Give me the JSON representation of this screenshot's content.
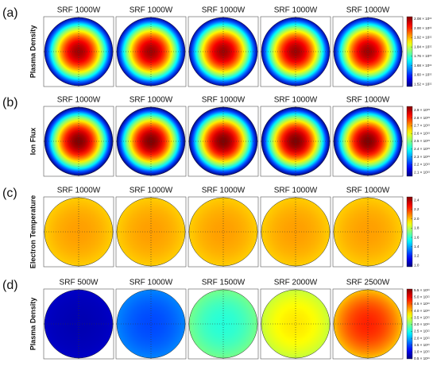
{
  "chart_data": [
    {
      "type": "heatmap",
      "label": "(a)",
      "ylabel": "Plasma Density",
      "panels": [
        {
          "title": "SRF 1000W",
          "center": 208000000000.0,
          "edge": 152000000000.0
        },
        {
          "title": "SRF 1000W",
          "center": 208000000000.0,
          "edge": 152000000000.0
        },
        {
          "title": "SRF 1000W",
          "center": 208000000000.0,
          "edge": 152000000000.0
        },
        {
          "title": "SRF 1000W",
          "center": 208000000000.0,
          "edge": 152000000000.0
        },
        {
          "title": "SRF 1000W",
          "center": 208000000000.0,
          "edge": 152000000000.0
        }
      ],
      "clim": [
        150000000000.0,
        210000000000.0
      ],
      "cticks": [
        {
          "value": 208000000000.0,
          "label": "2.08 × 10¹¹"
        },
        {
          "value": 200000000000.0,
          "label": "2.00 × 10¹¹"
        },
        {
          "value": 192000000000.0,
          "label": "1.92 × 10¹¹"
        },
        {
          "value": 184000000000.0,
          "label": "1.84 × 10¹¹"
        },
        {
          "value": 176000000000.0,
          "label": "1.76 × 10¹¹"
        },
        {
          "value": 168000000000.0,
          "label": "1.68 × 10¹¹"
        },
        {
          "value": 160000000000.0,
          "label": "1.60 × 10¹¹"
        },
        {
          "value": 152000000000.0,
          "label": "1.52 × 10¹¹"
        }
      ]
    },
    {
      "type": "heatmap",
      "label": "(b)",
      "ylabel": "Ion Flux",
      "panels": [
        {
          "title": "SRF 1000W",
          "center": 2950000000000000.0,
          "edge": 2050000000000000.0
        },
        {
          "title": "SRF 1000W",
          "center": 2950000000000000.0,
          "edge": 2050000000000000.0
        },
        {
          "title": "SRF 1000W",
          "center": 2950000000000000.0,
          "edge": 2050000000000000.0
        },
        {
          "title": "SRF 1000W",
          "center": 2950000000000000.0,
          "edge": 2050000000000000.0
        },
        {
          "title": "SRF 1000W",
          "center": 2950000000000000.0,
          "edge": 2050000000000000.0
        }
      ],
      "clim": [
        2050000000000000.0,
        2950000000000000.0
      ],
      "cticks": [
        {
          "value": 2900000000000000.0,
          "label": "2.9 × 10¹⁵"
        },
        {
          "value": 2800000000000000.0,
          "label": "2.8 × 10¹⁵"
        },
        {
          "value": 2700000000000000.0,
          "label": "2.7 × 10¹⁵"
        },
        {
          "value": 2600000000000000.0,
          "label": "2.6 × 10¹⁵"
        },
        {
          "value": 2500000000000000.0,
          "label": "2.5 × 10¹⁵"
        },
        {
          "value": 2400000000000000.0,
          "label": "2.4 × 10¹⁵"
        },
        {
          "value": 2300000000000000.0,
          "label": "2.3 × 10¹⁵"
        },
        {
          "value": 2200000000000000.0,
          "label": "2.2 × 10¹⁵"
        },
        {
          "value": 2100000000000000.0,
          "label": "2.1 × 10¹⁵"
        }
      ]
    },
    {
      "type": "heatmap",
      "label": "(c)",
      "ylabel": "Electron Temperature",
      "panels": [
        {
          "title": "SRF 1000W",
          "center": 2.05,
          "edge": 1.98
        },
        {
          "title": "SRF 1000W",
          "center": 2.05,
          "edge": 1.98
        },
        {
          "title": "SRF 1000W",
          "center": 2.05,
          "edge": 1.98
        },
        {
          "title": "SRF 1000W",
          "center": 2.05,
          "edge": 1.98
        },
        {
          "title": "SRF 1000W",
          "center": 2.05,
          "edge": 1.98
        }
      ],
      "clim": [
        0.97,
        2.47
      ],
      "cticks": [
        2.4,
        2.2,
        {
          "value": 2,
          "label": "2.0"
        },
        1.8,
        1.6,
        1.4,
        1.2,
        {
          "value": 1,
          "label": "1.0"
        }
      ]
    },
    {
      "type": "heatmap",
      "label": "(d)",
      "ylabel": "Plasma Density",
      "panels": [
        {
          "title": "SRF 500W",
          "center": 75000000000.0,
          "edge": 85000000000.0
        },
        {
          "title": "SRF 1000W",
          "center": 150000000000.0,
          "edge": 180000000000.0
        },
        {
          "title": "SRF 1500W",
          "center": 260000000000.0,
          "edge": 300000000000.0
        },
        {
          "title": "SRF 2000W",
          "center": 380000000000.0,
          "edge": 340000000000.0
        },
        {
          "title": "SRF 2500W",
          "center": 480000000000.0,
          "edge": 400000000000.0
        }
      ],
      "clim": [
        50000000000.0,
        560000000000.0
      ],
      "cticks": [
        {
          "value": 550000000000.0,
          "label": "5.5 × 10¹¹"
        },
        {
          "value": 500000000000.0,
          "label": "5.0 × 10¹¹"
        },
        {
          "value": 450000000000.0,
          "label": "4.5 × 10¹¹"
        },
        {
          "value": 400000000000.0,
          "label": "4.0 × 10¹¹"
        },
        {
          "value": 350000000000.0,
          "label": "3.5 × 10¹¹"
        },
        {
          "value": 300000000000.0,
          "label": "3.0 × 10¹¹"
        },
        {
          "value": 250000000000.0,
          "label": "2.5 × 10¹¹"
        },
        {
          "value": 200000000000.0,
          "label": "2.0 × 10¹¹"
        },
        {
          "value": 150000000000.0,
          "label": "1.5 × 10¹¹"
        },
        {
          "value": 100000000000.0,
          "label": "1.0 × 10¹¹"
        },
        {
          "value": 50000000000.0,
          "label": "0.5 × 10¹¹"
        }
      ]
    }
  ]
}
